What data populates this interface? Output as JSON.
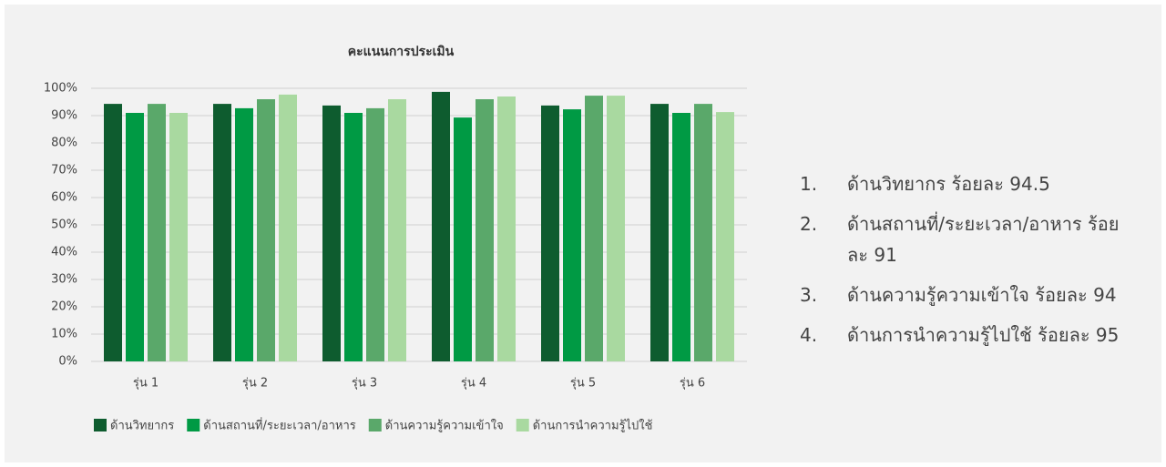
{
  "chart_data": {
    "type": "bar",
    "title": "คะแนนการประเมิน",
    "categories": [
      "รุ่น 1",
      "รุ่น 2",
      "รุ่น 3",
      "รุ่น 4",
      "รุ่น 5",
      "รุ่น 6"
    ],
    "series": [
      {
        "name": "ด้านวิทยากร",
        "color": "#0e5c2f",
        "values": [
          94.3,
          94.3,
          93.7,
          98.7,
          93.7,
          94.3
        ]
      },
      {
        "name": "ด้านสถานที่/ระยะเวลา/อาหาร",
        "color": "#009a44",
        "values": [
          91,
          92.7,
          91,
          89.3,
          92.3,
          91
        ]
      },
      {
        "name": "ด้านความรู้ความเข้าใจ",
        "color": "#5aa86a",
        "values": [
          94.3,
          96,
          92.7,
          96,
          97.3,
          94.3
        ]
      },
      {
        "name": "ด้านการนำความรู้ไปใช้",
        "color": "#a9d9a0",
        "values": [
          91,
          97.7,
          96,
          97,
          97.3,
          91.3
        ]
      }
    ],
    "ylim": [
      0,
      100
    ],
    "yticks": [
      {
        "value": 0,
        "label": "0%"
      },
      {
        "value": 10,
        "label": "10%"
      },
      {
        "value": 20,
        "label": "20%"
      },
      {
        "value": 30,
        "label": "30%"
      },
      {
        "value": 40,
        "label": "40%"
      },
      {
        "value": 50,
        "label": "50%"
      },
      {
        "value": 60,
        "label": "60%"
      },
      {
        "value": 70,
        "label": "70%"
      },
      {
        "value": 80,
        "label": "80%"
      },
      {
        "value": 90,
        "label": "90%"
      },
      {
        "value": 100,
        "label": "100%"
      }
    ],
    "grid": true,
    "legend": "bottom"
  },
  "list": {
    "items": [
      {
        "number": "1.",
        "text": "ด้านวิทยากร ร้อยละ 94.5"
      },
      {
        "number": "2.",
        "text": "ด้านสถานที่/ระยะเวลา/อาหาร ร้อยละ 91"
      },
      {
        "number": "3.",
        "text": "ด้านความรู้ความเข้าใจ ร้อยละ 94"
      },
      {
        "number": "4.",
        "text": "ด้านการนำความรู้ไปใช้ ร้อยละ 95"
      }
    ]
  }
}
